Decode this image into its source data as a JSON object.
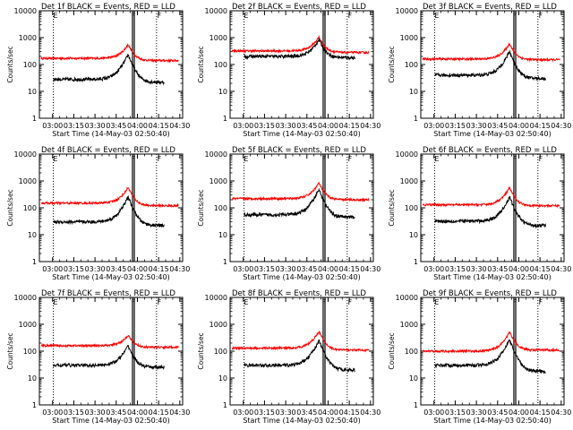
{
  "chart_data": {
    "type": "line",
    "x_ticks": [
      "03:00",
      "03:15",
      "03:30",
      "03:45",
      "04:00",
      "04:15",
      "04:30"
    ],
    "y_ticks": [
      "1",
      "10",
      "100",
      "1000",
      "10000"
    ],
    "ylim": [
      1,
      10000
    ],
    "y_scale": "log",
    "xlabel": "Start Time (14-May-03 02:50:40)",
    "ylabel": "Counts/sec",
    "series_colors": {
      "events": "#000000",
      "lld": "#ff0000"
    },
    "marker_labels": [
      "E",
      "F",
      "F"
    ],
    "panels": [
      {
        "title": "Det 1f BLACK = Events, RED = LLD",
        "events": {
          "base": 28,
          "peak": 230,
          "end": 22
        },
        "lld": {
          "base": 170,
          "peak": 560,
          "end": 140
        }
      },
      {
        "title": "Det 2f BLACK = Events, RED = LLD",
        "events": {
          "base": 200,
          "peak": 850,
          "end": 180
        },
        "lld": {
          "base": 320,
          "peak": 1050,
          "end": 280
        }
      },
      {
        "title": "Det 3f BLACK = Events, RED = LLD",
        "events": {
          "base": 40,
          "peak": 300,
          "end": 30
        },
        "lld": {
          "base": 160,
          "peak": 600,
          "end": 150
        }
      },
      {
        "title": "Det 4f BLACK = Events, RED = LLD",
        "events": {
          "base": 30,
          "peak": 250,
          "end": 22
        },
        "lld": {
          "base": 150,
          "peak": 580,
          "end": 120
        }
      },
      {
        "title": "Det 5f BLACK = Events, RED = LLD",
        "events": {
          "base": 55,
          "peak": 480,
          "end": 45
        },
        "lld": {
          "base": 220,
          "peak": 850,
          "end": 200
        }
      },
      {
        "title": "Det 6f BLACK = Events, RED = LLD",
        "events": {
          "base": 32,
          "peak": 250,
          "end": 22
        },
        "lld": {
          "base": 130,
          "peak": 560,
          "end": 120
        }
      },
      {
        "title": "Det 7f BLACK = Events, RED = LLD",
        "events": {
          "base": 30,
          "peak": 160,
          "end": 25
        },
        "lld": {
          "base": 160,
          "peak": 400,
          "end": 140
        }
      },
      {
        "title": "Det 8f BLACK = Events, RED = LLD",
        "events": {
          "base": 30,
          "peak": 250,
          "end": 20
        },
        "lld": {
          "base": 130,
          "peak": 550,
          "end": 110
        }
      },
      {
        "title": "Det 9f BLACK = Events, RED = LLD",
        "events": {
          "base": 30,
          "peak": 260,
          "end": 18
        },
        "lld": {
          "base": 100,
          "peak": 520,
          "end": 110
        }
      }
    ]
  }
}
